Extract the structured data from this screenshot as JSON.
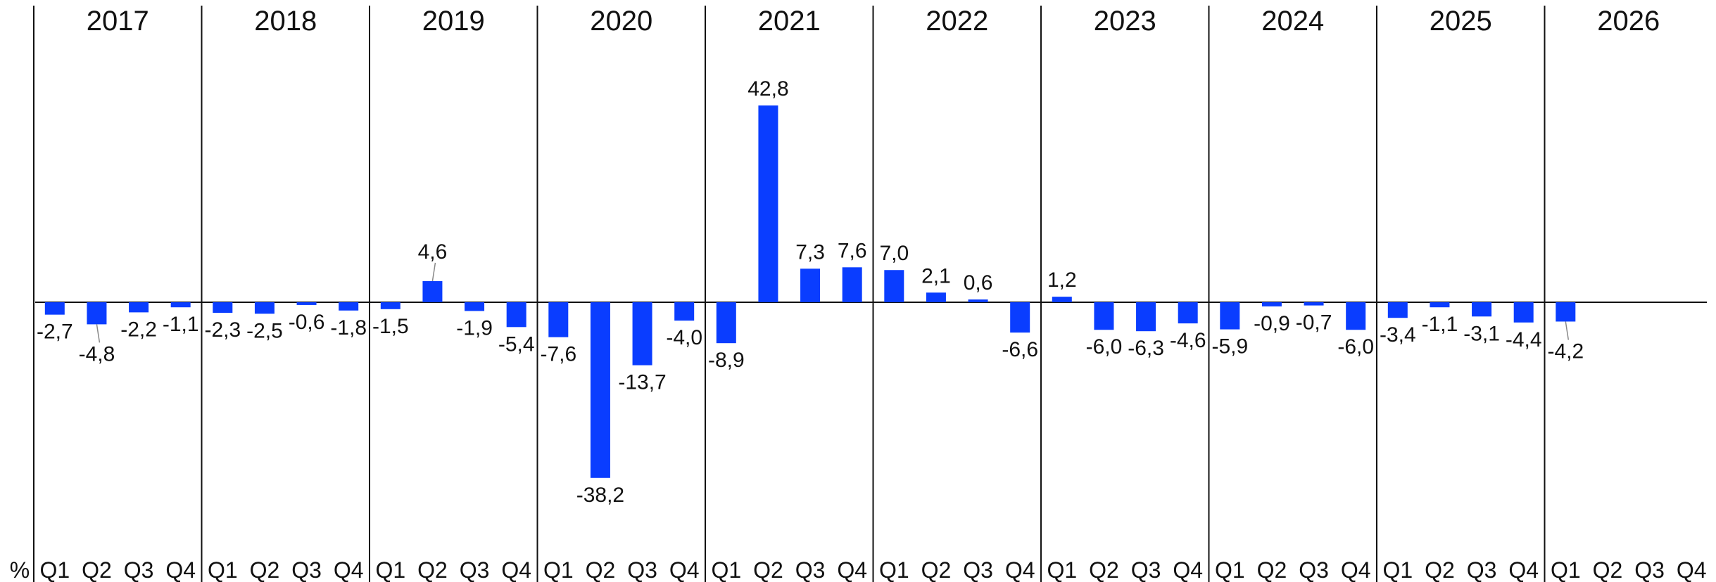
{
  "chart_data": {
    "type": "bar",
    "unit_label": "%",
    "years": [
      "2017",
      "2018",
      "2019",
      "2020",
      "2021",
      "2022",
      "2023",
      "2024",
      "2025",
      "2026"
    ],
    "quarters": [
      "Q1",
      "Q2",
      "Q3",
      "Q4"
    ],
    "values": [
      -2.7,
      -4.8,
      -2.2,
      -1.1,
      -2.3,
      -2.5,
      -0.6,
      -1.8,
      -1.5,
      4.6,
      -1.9,
      -5.4,
      -7.6,
      -38.2,
      -13.7,
      -4.0,
      -8.9,
      42.8,
      7.3,
      7.6,
      7.0,
      2.1,
      0.6,
      -6.6,
      1.2,
      -6.0,
      -6.3,
      -4.6,
      -5.9,
      -0.9,
      -0.7,
      -6.0,
      -3.4,
      -1.1,
      -3.1,
      -4.4,
      -4.2,
      null,
      null,
      null
    ],
    "value_labels": [
      "-2,7",
      "-4,8",
      "-2,2",
      "-1,1",
      "-2,3",
      "-2,5",
      "-0,6",
      "-1,8",
      "-1,5",
      "4,6",
      "-1,9",
      "-5,4",
      "-7,6",
      "-38,2",
      "-13,7",
      "-4,0",
      "-8,9",
      "42,8",
      "7,3",
      "7,6",
      "7,0",
      "2,1",
      "0,6",
      "-6,6",
      "1,2",
      "-6,0",
      "-6,3",
      "-4,6",
      "-5,9",
      "-0,9",
      "-0,7",
      "-6,0",
      "-3,4",
      "-1,1",
      "-3,1",
      "-4,4",
      "-4,2",
      "",
      "",
      ""
    ],
    "ylim": [
      -45,
      50
    ],
    "grid": false,
    "bar_color": "#0a3dff"
  }
}
